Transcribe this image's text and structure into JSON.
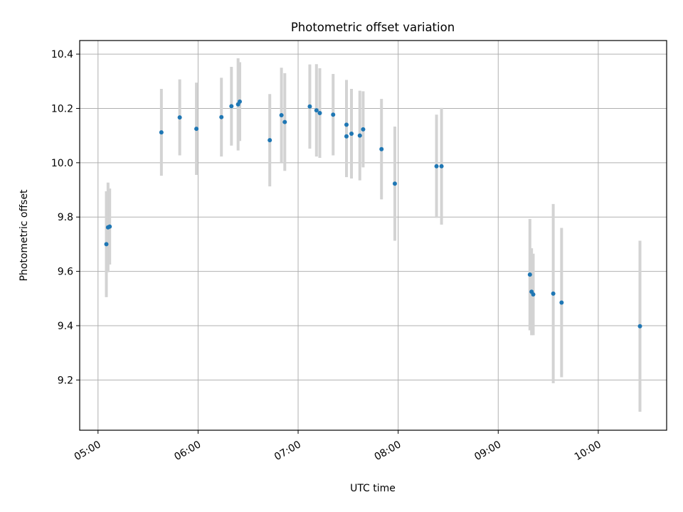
{
  "chart_data": {
    "type": "scatter",
    "title": "Photometric offset variation",
    "xlabel": "UTC time",
    "ylabel": "Photometric offset",
    "xlim": [
      "04:49",
      "10:41"
    ],
    "ylim": [
      9.015,
      10.45
    ],
    "xticks": [
      "05:00",
      "06:00",
      "07:00",
      "08:00",
      "09:00",
      "10:00"
    ],
    "yticks": [
      9.2,
      9.4,
      9.6,
      9.8,
      10.0,
      10.2,
      10.4
    ],
    "grid": true,
    "colors": {
      "points": "#1f77b4",
      "errorbars": "#d3d3d3",
      "grid": "#b0b0b0"
    },
    "points": [
      {
        "x": "05:05",
        "y": 9.7,
        "err": 0.195
      },
      {
        "x": "05:06",
        "y": 9.762,
        "err": 0.165
      },
      {
        "x": "05:07",
        "y": 9.765,
        "err": 0.14
      },
      {
        "x": "05:38",
        "y": 10.112,
        "err": 0.16
      },
      {
        "x": "05:49",
        "y": 10.167,
        "err": 0.14
      },
      {
        "x": "05:59",
        "y": 10.125,
        "err": 0.17
      },
      {
        "x": "06:14",
        "y": 10.168,
        "err": 0.145
      },
      {
        "x": "06:20",
        "y": 10.208,
        "err": 0.145
      },
      {
        "x": "06:24",
        "y": 10.215,
        "err": 0.17
      },
      {
        "x": "06:25",
        "y": 10.225,
        "err": 0.145
      },
      {
        "x": "06:43",
        "y": 10.083,
        "err": 0.17
      },
      {
        "x": "06:50",
        "y": 10.175,
        "err": 0.175
      },
      {
        "x": "06:52",
        "y": 10.15,
        "err": 0.18
      },
      {
        "x": "07:07",
        "y": 10.207,
        "err": 0.155
      },
      {
        "x": "07:11",
        "y": 10.193,
        "err": 0.17
      },
      {
        "x": "07:13",
        "y": 10.183,
        "err": 0.165
      },
      {
        "x": "07:21",
        "y": 10.177,
        "err": 0.15
      },
      {
        "x": "07:29",
        "y": 10.097,
        "err": 0.15
      },
      {
        "x": "07:29",
        "y": 10.14,
        "err": 0.165
      },
      {
        "x": "07:32",
        "y": 10.107,
        "err": 0.165
      },
      {
        "x": "07:37",
        "y": 10.1,
        "err": 0.165
      },
      {
        "x": "07:39",
        "y": 10.123,
        "err": 0.14
      },
      {
        "x": "07:50",
        "y": 10.05,
        "err": 0.185
      },
      {
        "x": "07:58",
        "y": 9.923,
        "err": 0.21
      },
      {
        "x": "08:23",
        "y": 9.987,
        "err": 0.19
      },
      {
        "x": "08:26",
        "y": 9.987,
        "err": 0.215
      },
      {
        "x": "09:19",
        "y": 9.588,
        "err": 0.205
      },
      {
        "x": "09:20",
        "y": 9.525,
        "err": 0.16
      },
      {
        "x": "09:21",
        "y": 9.515,
        "err": 0.15
      },
      {
        "x": "09:33",
        "y": 9.518,
        "err": 0.33
      },
      {
        "x": "09:38",
        "y": 9.485,
        "err": 0.275
      },
      {
        "x": "10:25",
        "y": 9.398,
        "err": 0.315
      }
    ]
  }
}
